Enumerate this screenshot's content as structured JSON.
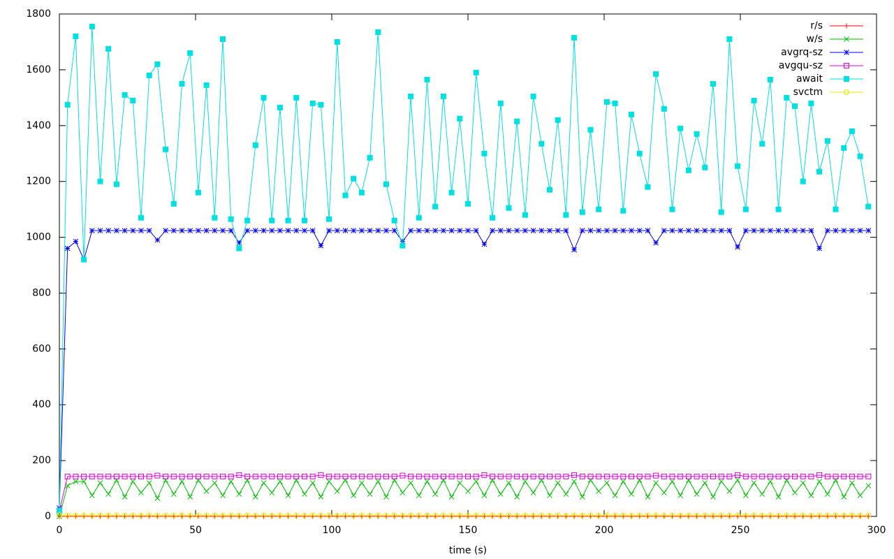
{
  "chart_data": {
    "type": "line",
    "xlabel": "time (s)",
    "xlim": [
      0,
      300
    ],
    "xticks": [
      0,
      50,
      100,
      150,
      200,
      250,
      300
    ],
    "ylim": [
      0,
      1800
    ],
    "yticks": [
      0,
      200,
      400,
      600,
      800,
      1000,
      1200,
      1400,
      1600,
      1800
    ],
    "legend": "top-right",
    "x": [
      0,
      3,
      6,
      9,
      12,
      15,
      18,
      21,
      24,
      27,
      30,
      33,
      36,
      39,
      42,
      45,
      48,
      51,
      54,
      57,
      60,
      63,
      66,
      69,
      72,
      75,
      78,
      81,
      84,
      87,
      90,
      93,
      96,
      99,
      102,
      105,
      108,
      111,
      114,
      117,
      120,
      123,
      126,
      129,
      132,
      135,
      138,
      141,
      144,
      147,
      150,
      153,
      156,
      159,
      162,
      165,
      168,
      171,
      174,
      177,
      180,
      183,
      186,
      189,
      192,
      195,
      198,
      201,
      204,
      207,
      210,
      213,
      216,
      219,
      222,
      225,
      228,
      231,
      234,
      237,
      240,
      243,
      246,
      249,
      252,
      255,
      258,
      261,
      264,
      267,
      270,
      273,
      276,
      279,
      282,
      285,
      288,
      291,
      294,
      297
    ],
    "series": [
      {
        "name": "r/s",
        "color": "#ff0000",
        "marker": "plus",
        "values": [
          0,
          0,
          0,
          0,
          0,
          0,
          0,
          0,
          0,
          0,
          0,
          0,
          0,
          0,
          0,
          0,
          0,
          0,
          0,
          0,
          0,
          0,
          0,
          0,
          0,
          0,
          0,
          0,
          0,
          0,
          0,
          0,
          0,
          0,
          0,
          0,
          0,
          0,
          0,
          0,
          0,
          0,
          0,
          0,
          0,
          0,
          0,
          0,
          0,
          0,
          0,
          0,
          0,
          0,
          0,
          0,
          0,
          0,
          0,
          0,
          0,
          0,
          0,
          0,
          0,
          0,
          0,
          0,
          0,
          0,
          0,
          0,
          0,
          0,
          0,
          0,
          0,
          0,
          0,
          0,
          0,
          0,
          0,
          0,
          0,
          0,
          0,
          0,
          0,
          0,
          0,
          0,
          0,
          0,
          0,
          0,
          0,
          0,
          0,
          0
        ]
      },
      {
        "name": "w/s",
        "color": "#00c000",
        "marker": "cross",
        "values": [
          0,
          110,
          125,
          125,
          75,
          120,
          80,
          130,
          70,
          125,
          85,
          120,
          65,
          130,
          80,
          125,
          70,
          130,
          90,
          120,
          75,
          125,
          80,
          130,
          70,
          120,
          85,
          125,
          75,
          130,
          80,
          120,
          70,
          125,
          90,
          130,
          75,
          120,
          80,
          125,
          70,
          130,
          85,
          120,
          75,
          125,
          80,
          130,
          70,
          120,
          90,
          125,
          75,
          130,
          80,
          120,
          70,
          125,
          85,
          130,
          75,
          120,
          80,
          125,
          70,
          130,
          90,
          120,
          75,
          125,
          80,
          130,
          70,
          120,
          85,
          125,
          75,
          130,
          80,
          120,
          70,
          125,
          90,
          130,
          75,
          120,
          80,
          125,
          70,
          130,
          85,
          120,
          75,
          125,
          80,
          130,
          70,
          120,
          75,
          110
        ]
      },
      {
        "name": "avgrq-sz",
        "color": "#0000ff",
        "marker": "asterisk",
        "values": [
          30,
          960,
          985,
          920,
          1024,
          1024,
          1024,
          1024,
          1024,
          1024,
          1024,
          1024,
          990,
          1024,
          1024,
          1024,
          1024,
          1024,
          1024,
          1024,
          1024,
          1024,
          980,
          1024,
          1024,
          1024,
          1024,
          1024,
          1024,
          1024,
          1024,
          1024,
          970,
          1024,
          1024,
          1024,
          1024,
          1024,
          1024,
          1024,
          1024,
          1024,
          985,
          1024,
          1024,
          1024,
          1024,
          1024,
          1024,
          1024,
          1024,
          1024,
          975,
          1024,
          1024,
          1024,
          1024,
          1024,
          1024,
          1024,
          1024,
          1024,
          1024,
          955,
          1024,
          1024,
          1024,
          1024,
          1024,
          1024,
          1024,
          1024,
          1024,
          980,
          1024,
          1024,
          1024,
          1024,
          1024,
          1024,
          1024,
          1024,
          1024,
          965,
          1024,
          1024,
          1024,
          1024,
          1024,
          1024,
          1024,
          1024,
          1024,
          960,
          1024,
          1024,
          1024,
          1024,
          1024,
          1024
        ]
      },
      {
        "name": "avgqu-sz",
        "color": "#e000e0",
        "marker": "open-square",
        "values": [
          20,
          143,
          143,
          143,
          143,
          143,
          143,
          143,
          143,
          143,
          143,
          143,
          146,
          143,
          143,
          143,
          143,
          143,
          143,
          143,
          143,
          143,
          148,
          143,
          143,
          143,
          143,
          143,
          143,
          143,
          143,
          143,
          148,
          143,
          143,
          143,
          143,
          143,
          143,
          143,
          143,
          143,
          146,
          143,
          143,
          143,
          143,
          143,
          143,
          143,
          143,
          143,
          148,
          143,
          143,
          143,
          143,
          143,
          143,
          143,
          143,
          143,
          143,
          148,
          143,
          143,
          143,
          143,
          143,
          143,
          143,
          143,
          143,
          146,
          143,
          143,
          143,
          143,
          143,
          143,
          143,
          143,
          143,
          148,
          143,
          143,
          143,
          143,
          143,
          143,
          143,
          143,
          143,
          148,
          143,
          143,
          143,
          143,
          143,
          143
        ]
      },
      {
        "name": "await",
        "color": "#00e0e0",
        "marker": "filled-square",
        "values": [
          20,
          1475,
          1720,
          920,
          1755,
          1200,
          1675,
          1190,
          1510,
          1490,
          1070,
          1580,
          1620,
          1315,
          1120,
          1550,
          1660,
          1160,
          1545,
          1070,
          1710,
          1065,
          960,
          1060,
          1330,
          1500,
          1060,
          1465,
          1060,
          1500,
          1060,
          1480,
          1475,
          1065,
          1700,
          1150,
          1210,
          1160,
          1285,
          1735,
          1190,
          1060,
          970,
          1505,
          1070,
          1565,
          1110,
          1505,
          1160,
          1425,
          1120,
          1590,
          1300,
          1070,
          1480,
          1105,
          1415,
          1080,
          1505,
          1335,
          1170,
          1420,
          1080,
          1715,
          1090,
          1385,
          1100,
          1485,
          1480,
          1095,
          1440,
          1300,
          1180,
          1585,
          1460,
          1100,
          1390,
          1240,
          1370,
          1250,
          1550,
          1090,
          1710,
          1255,
          1100,
          1490,
          1335,
          1565,
          1100,
          1500,
          1470,
          1200,
          1480,
          1235,
          1345,
          1100,
          1320,
          1380,
          1290,
          1110
        ]
      },
      {
        "name": "svctm",
        "color": "#e8e800",
        "marker": "open-circle",
        "values": [
          5,
          4,
          3,
          4,
          3,
          4,
          3,
          4,
          3,
          4,
          3,
          4,
          3,
          4,
          3,
          4,
          3,
          4,
          3,
          4,
          3,
          4,
          3,
          4,
          3,
          4,
          3,
          4,
          3,
          4,
          3,
          4,
          3,
          4,
          3,
          4,
          3,
          4,
          3,
          4,
          3,
          4,
          3,
          4,
          3,
          4,
          3,
          4,
          3,
          4,
          3,
          4,
          3,
          4,
          3,
          4,
          3,
          4,
          3,
          4,
          3,
          4,
          3,
          4,
          3,
          4,
          3,
          4,
          3,
          4,
          3,
          4,
          3,
          4,
          3,
          4,
          3,
          4,
          3,
          4,
          3,
          4,
          3,
          4,
          3,
          4,
          3,
          4,
          3,
          4,
          3,
          4,
          3,
          4,
          3,
          4,
          3,
          4,
          3,
          4
        ]
      }
    ]
  }
}
